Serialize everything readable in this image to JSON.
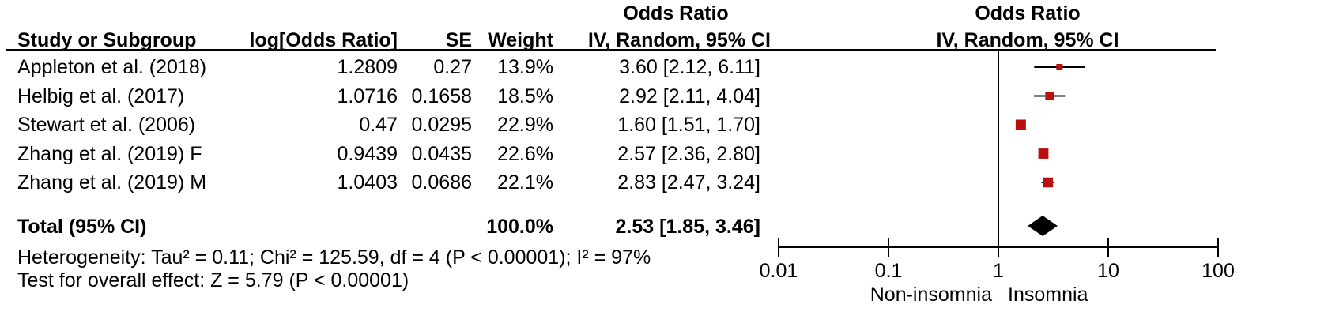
{
  "header": {
    "study": "Study or Subgroup",
    "log_or": "log[Odds Ratio]",
    "se": "SE",
    "weight": "Weight",
    "or_title": "Odds Ratio",
    "or_method": "IV, Random, 95% CI",
    "plot_title": "Odds Ratio",
    "plot_method": "IV, Random, 95% CI"
  },
  "total": {
    "label": "Total (95% CI)",
    "weight": "100.0%",
    "or_ci": "2.53 [1.85, 3.46]"
  },
  "footer": {
    "heterogeneity": "Heterogeneity: Tau² = 0.11; Chi² = 125.59, df = 4 (P < 0.00001); I² = 97%",
    "overall": "Test for overall effect: Z = 5.79 (P < 0.00001)"
  },
  "axis": {
    "favours_left": "Non-insomnia",
    "favours_right": "Insomnia"
  },
  "colors": {
    "marker": "#b80f0f",
    "diamond": "#000000"
  },
  "chart_data": {
    "type": "forest",
    "x_scale": "log",
    "xlim": [
      0.01,
      100
    ],
    "x_ticks": [
      "0.01",
      "0.1",
      "1",
      "10",
      "100"
    ],
    "studies": [
      {
        "name": "Appleton et al. (2018)",
        "log_or": "1.2809",
        "se": "0.27",
        "weight": "13.9%",
        "or_ci": "3.60 [2.12, 6.11]",
        "or": 3.6,
        "lo": 2.12,
        "hi": 6.11
      },
      {
        "name": "Helbig et al. (2017)",
        "log_or": "1.0716",
        "se": "0.1658",
        "weight": "18.5%",
        "or_ci": "2.92 [2.11, 4.04]",
        "or": 2.92,
        "lo": 2.11,
        "hi": 4.04
      },
      {
        "name": "Stewart et al. (2006)",
        "log_or": "0.47",
        "se": "0.0295",
        "weight": "22.9%",
        "or_ci": "1.60 [1.51, 1.70]",
        "or": 1.6,
        "lo": 1.51,
        "hi": 1.7
      },
      {
        "name": "Zhang et al. (2019) F",
        "log_or": "0.9439",
        "se": "0.0435",
        "weight": "22.6%",
        "or_ci": "2.57 [2.36, 2.80]",
        "or": 2.57,
        "lo": 2.36,
        "hi": 2.8
      },
      {
        "name": "Zhang et al. (2019) M",
        "log_or": "1.0403",
        "se": "0.0686",
        "weight": "22.1%",
        "or_ci": "2.83 [2.47, 3.24]",
        "or": 2.83,
        "lo": 2.47,
        "hi": 3.24
      }
    ],
    "pooled": {
      "or": 2.53,
      "lo": 1.85,
      "hi": 3.46
    }
  }
}
